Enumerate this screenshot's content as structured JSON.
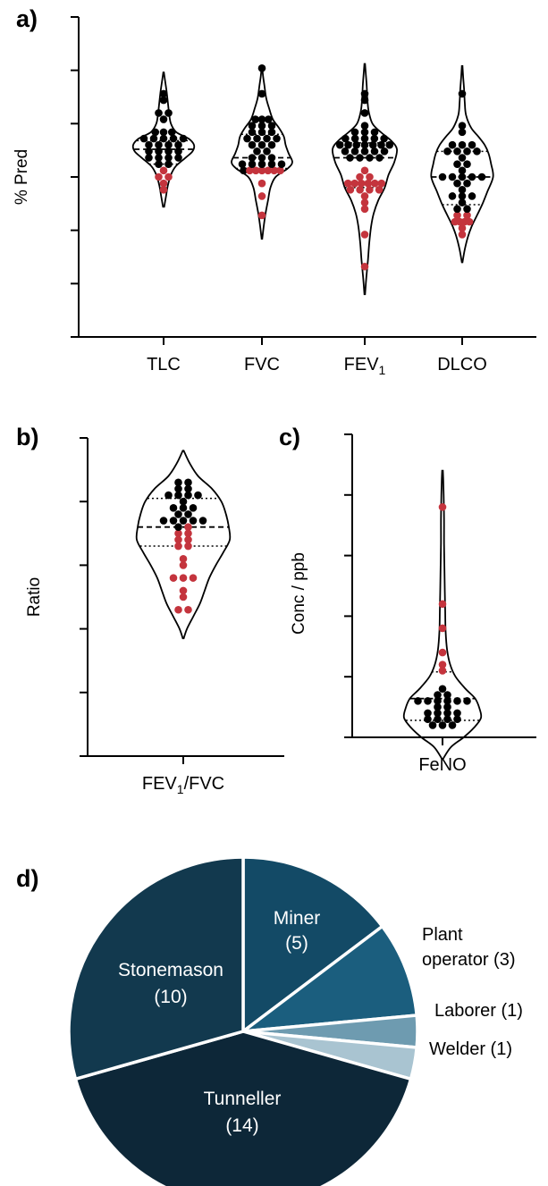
{
  "chart_data": [
    {
      "panel": "a)",
      "type": "violin",
      "ylabel": "% Pred",
      "ylim": [
        0,
        150
      ],
      "yticks": [
        0,
        25,
        50,
        75,
        100,
        125,
        150
      ],
      "categories": [
        {
          "label": "TLC",
          "sub": "",
          "tail": "",
          "range": [
            61,
            124
          ],
          "median": 88,
          "q1": 81,
          "q3": 92,
          "widths": [
            [
              61,
              0.02
            ],
            [
              66,
              0.08
            ],
            [
              71,
              0.14
            ],
            [
              76,
              0.24
            ],
            [
              80,
              0.4
            ],
            [
              84,
              0.72
            ],
            [
              87,
              0.95
            ],
            [
              90,
              1.0
            ],
            [
              93,
              0.82
            ],
            [
              96,
              0.42
            ],
            [
              100,
              0.24
            ],
            [
              105,
              0.18
            ],
            [
              110,
              0.14
            ],
            [
              115,
              0.1
            ],
            [
              120,
              0.05
            ],
            [
              124,
              0.01
            ]
          ],
          "black": [
            115,
            112,
            105,
            104,
            101,
            97,
            97,
            96,
            93,
            93,
            93,
            93,
            93,
            90,
            90,
            90,
            90,
            87,
            87,
            87,
            87,
            84,
            84,
            84,
            84,
            80,
            80
          ],
          "red": [
            78,
            76,
            76,
            72,
            69
          ]
        },
        {
          "label": "FVC",
          "sub": "",
          "tail": "",
          "range": [
            46,
            126
          ],
          "median": 84,
          "q1": 79,
          "q3": 95,
          "widths": [
            [
              46,
              0.01
            ],
            [
              52,
              0.06
            ],
            [
              58,
              0.12
            ],
            [
              64,
              0.2
            ],
            [
              70,
              0.28
            ],
            [
              75,
              0.45
            ],
            [
              79,
              0.85
            ],
            [
              82,
              1.0
            ],
            [
              86,
              0.88
            ],
            [
              90,
              0.78
            ],
            [
              94,
              0.72
            ],
            [
              98,
              0.56
            ],
            [
              102,
              0.36
            ],
            [
              107,
              0.24
            ],
            [
              112,
              0.14
            ],
            [
              118,
              0.08
            ],
            [
              122,
              0.04
            ],
            [
              126,
              0.01
            ]
          ],
          "black": [
            125,
            115,
            103,
            101,
            101,
            99,
            99,
            98,
            97,
            96,
            96,
            93,
            93,
            93,
            92,
            90,
            90,
            89,
            86,
            86,
            84,
            84,
            84,
            82,
            82,
            82,
            81,
            81,
            79
          ],
          "red": [
            79,
            78,
            78,
            78,
            77,
            77,
            72,
            66,
            58
          ]
        },
        {
          "label": "FEV",
          "sub": "1",
          "tail": "",
          "range": [
            20,
            128
          ],
          "median": 84,
          "q1": 70,
          "q3": 91,
          "widths": [
            [
              20,
              0.01
            ],
            [
              28,
              0.05
            ],
            [
              36,
              0.1
            ],
            [
              44,
              0.14
            ],
            [
              52,
              0.2
            ],
            [
              58,
              0.28
            ],
            [
              64,
              0.42
            ],
            [
              70,
              0.62
            ],
            [
              76,
              0.74
            ],
            [
              82,
              0.92
            ],
            [
              88,
              1.0
            ],
            [
              92,
              0.82
            ],
            [
              96,
              0.5
            ],
            [
              100,
              0.24
            ],
            [
              106,
              0.12
            ],
            [
              112,
              0.08
            ],
            [
              118,
              0.06
            ],
            [
              124,
              0.03
            ],
            [
              128,
              0.01
            ]
          ],
          "black": [
            114,
            110,
            104,
            100,
            96,
            95,
            95,
            94,
            94,
            93,
            92,
            92,
            91,
            91,
            90,
            89,
            89,
            89,
            89,
            88,
            87,
            87,
            86,
            86,
            84,
            84,
            84,
            84
          ],
          "red": [
            79,
            76,
            76,
            73,
            72,
            72,
            72,
            71,
            71,
            70,
            70,
            70,
            70,
            66,
            62,
            61,
            47,
            34
          ]
        },
        {
          "label": "DLCO",
          "sub": "",
          "tail": "",
          "range": [
            35,
            127
          ],
          "median": 75,
          "q1": 62,
          "q3": 87,
          "widths": [
            [
              35,
              0.01
            ],
            [
              41,
              0.08
            ],
            [
              47,
              0.18
            ],
            [
              52,
              0.3
            ],
            [
              57,
              0.46
            ],
            [
              62,
              0.62
            ],
            [
              68,
              0.78
            ],
            [
              75,
              0.96
            ],
            [
              81,
              0.9
            ],
            [
              86,
              0.82
            ],
            [
              90,
              0.7
            ],
            [
              94,
              0.5
            ],
            [
              98,
              0.28
            ],
            [
              104,
              0.12
            ],
            [
              110,
              0.08
            ],
            [
              116,
              0.06
            ],
            [
              122,
              0.03
            ],
            [
              127,
              0.01
            ]
          ],
          "black": [
            113,
            98,
            96,
            91,
            89,
            89,
            88,
            86,
            86,
            86,
            85,
            82,
            81,
            79,
            76,
            75,
            75,
            74,
            74,
            71,
            71,
            68,
            66,
            66,
            65,
            63,
            61,
            60
          ],
          "red": [
            57,
            57,
            55,
            55,
            54,
            53,
            52,
            49
          ]
        }
      ]
    },
    {
      "panel": "b)",
      "type": "violin",
      "ylabel": "Ratio",
      "ylim": [
        0.0,
        1.0
      ],
      "yticks": [
        "0.0",
        "0.2",
        "0.4",
        "0.6",
        "0.8",
        "1.0"
      ],
      "categories": [
        {
          "label": "FEV",
          "sub": "1",
          "tail": "/FVC",
          "range": [
            0.37,
            0.96
          ],
          "median": 0.72,
          "q1": 0.66,
          "q3": 0.81,
          "widths": [
            [
              0.37,
              0.01
            ],
            [
              0.4,
              0.08
            ],
            [
              0.44,
              0.22
            ],
            [
              0.48,
              0.36
            ],
            [
              0.52,
              0.46
            ],
            [
              0.56,
              0.56
            ],
            [
              0.6,
              0.7
            ],
            [
              0.64,
              0.86
            ],
            [
              0.68,
              1.0
            ],
            [
              0.72,
              0.98
            ],
            [
              0.76,
              0.92
            ],
            [
              0.8,
              0.82
            ],
            [
              0.84,
              0.62
            ],
            [
              0.88,
              0.32
            ],
            [
              0.92,
              0.14
            ],
            [
              0.96,
              0.01
            ]
          ],
          "black": [
            0.86,
            0.85,
            0.84,
            0.84,
            0.82,
            0.81,
            0.81,
            0.81,
            0.79,
            0.78,
            0.78,
            0.77,
            0.76,
            0.76,
            0.74,
            0.74,
            0.74,
            0.73,
            0.73,
            0.71
          ],
          "red": [
            0.71,
            0.7,
            0.7,
            0.67,
            0.67,
            0.66,
            0.65,
            0.61,
            0.6,
            0.57,
            0.56,
            0.55,
            0.51,
            0.49,
            0.47,
            0.47
          ]
        }
      ]
    },
    {
      "panel": "c)",
      "type": "violin",
      "ylabel": "Conc / ppb",
      "ylim": [
        0,
        125
      ],
      "yticks": [
        0,
        25,
        50,
        75,
        100,
        125
      ],
      "categories": [
        {
          "label": "FeNO",
          "sub": "",
          "tail": "",
          "range": [
            -9,
            110
          ],
          "median": 16,
          "q1": 7,
          "q3": 27,
          "widths": [
            [
              -9,
              0.01
            ],
            [
              -4,
              0.22
            ],
            [
              0,
              0.55
            ],
            [
              4,
              0.82
            ],
            [
              8,
              1.0
            ],
            [
              12,
              0.96
            ],
            [
              16,
              0.85
            ],
            [
              20,
              0.6
            ],
            [
              25,
              0.34
            ],
            [
              30,
              0.2
            ],
            [
              36,
              0.12
            ],
            [
              44,
              0.08
            ],
            [
              52,
              0.07
            ],
            [
              60,
              0.06
            ],
            [
              70,
              0.05
            ],
            [
              80,
              0.04
            ],
            [
              90,
              0.04
            ],
            [
              100,
              0.03
            ],
            [
              106,
              0.02
            ],
            [
              110,
              0.01
            ]
          ],
          "black": [
            19,
            17,
            17,
            16,
            16,
            16,
            16,
            16,
            14,
            13,
            12,
            11,
            10,
            10,
            9,
            8,
            7,
            7,
            7,
            6,
            5,
            5
          ],
          "red": [
            96,
            56,
            44,
            34,
            29,
            27
          ]
        }
      ]
    },
    {
      "panel": "d)",
      "type": "pie",
      "slices": [
        {
          "label": "Miner",
          "value": 5,
          "color": "#134a66"
        },
        {
          "label": "Plant operator",
          "value": 3,
          "color": "#1b5e7e"
        },
        {
          "label": "Laborer",
          "value": 1,
          "color": "#6e9bb0"
        },
        {
          "label": "Welder",
          "value": 1,
          "color": "#a9c4d1"
        },
        {
          "label": "Tunneller",
          "value": 14,
          "color": "#0d2738"
        },
        {
          "label": "Stonemason",
          "value": 10,
          "color": "#12394e"
        }
      ],
      "labels": {
        "miner": [
          "Miner",
          "(5)"
        ],
        "plant": [
          "Plant",
          "operator (3)"
        ],
        "laborer": [
          "Laborer (1)"
        ],
        "welder": [
          "Welder (1)"
        ],
        "tunneller": [
          "Tunneller",
          "(14)"
        ],
        "stonemason": [
          "Stonemason",
          "(10)"
        ]
      }
    }
  ],
  "colors": {
    "black_dot": "#000000",
    "red_dot": "#c4343d"
  }
}
